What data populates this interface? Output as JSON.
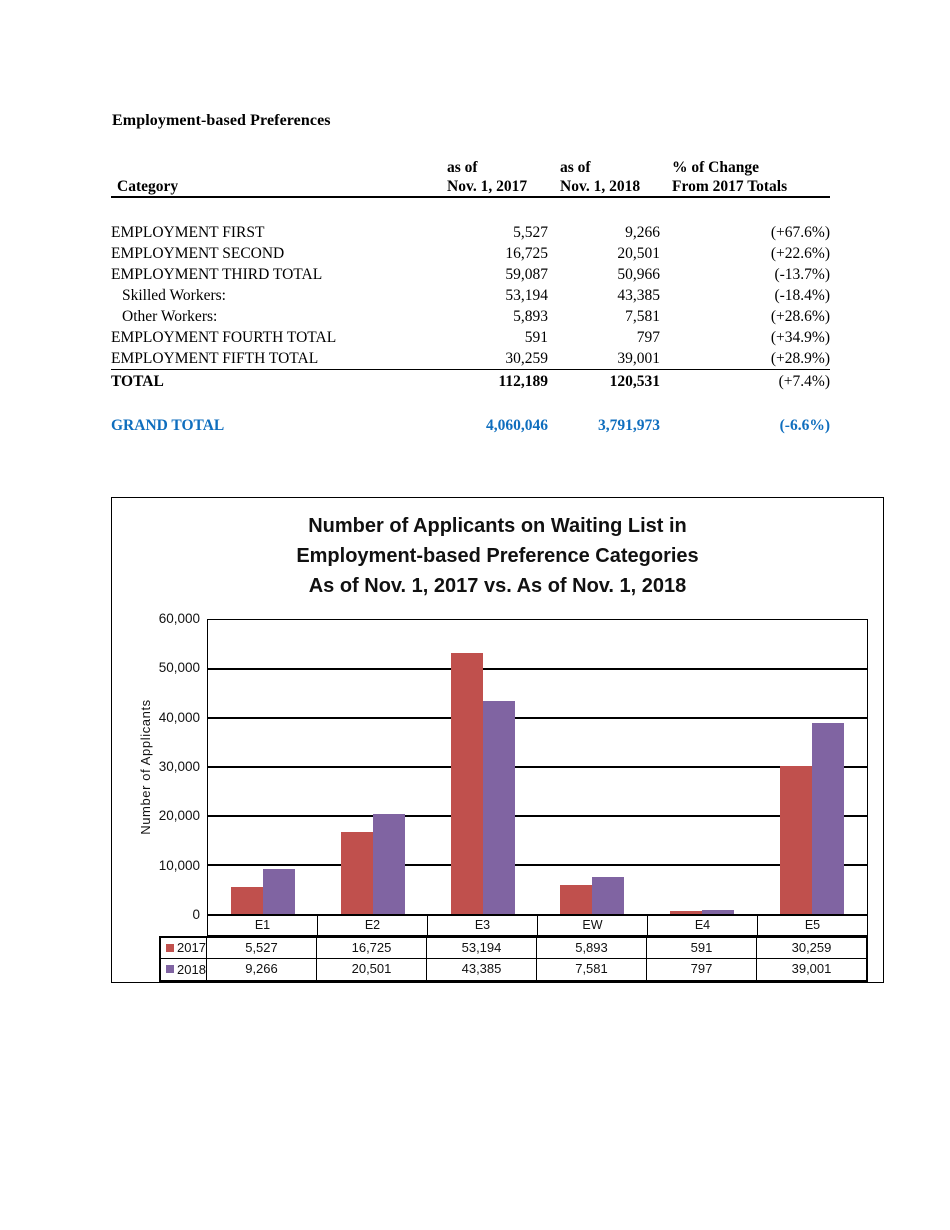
{
  "doc": {
    "heading": "Employment-based Preferences"
  },
  "table": {
    "headers": {
      "category": "Category",
      "col2": [
        "as of",
        "Nov. 1, 2017"
      ],
      "col3": [
        "as of",
        "Nov. 1, 2018"
      ],
      "col4": [
        "% of Change",
        "From 2017 Totals"
      ]
    },
    "rows": [
      {
        "category": "EMPLOYMENT FIRST",
        "y2017": "5,527",
        "y2018": "9,266",
        "change": "(+67.6%)",
        "style": "normal"
      },
      {
        "category": "EMPLOYMENT SECOND",
        "y2017": "16,725",
        "y2018": "20,501",
        "change": "(+22.6%)",
        "style": "normal"
      },
      {
        "category": "EMPLOYMENT THIRD TOTAL",
        "y2017": "59,087",
        "y2018": "50,966",
        "change": "(-13.7%)",
        "style": "normal"
      },
      {
        "category": "Skilled Workers:",
        "y2017": "53,194",
        "y2018": "43,385",
        "change": "(-18.4%)",
        "style": "indent"
      },
      {
        "category": "Other Workers:",
        "y2017": "5,893",
        "y2018": "7,581",
        "change": "(+28.6%)",
        "style": "indent"
      },
      {
        "category": "EMPLOYMENT FOURTH TOTAL",
        "y2017": "591",
        "y2018": "797",
        "change": "(+34.9%)",
        "style": "normal"
      },
      {
        "category": "EMPLOYMENT FIFTH TOTAL",
        "y2017": "30,259",
        "y2018": "39,001",
        "change": "(+28.9%)",
        "style": "rule-below"
      },
      {
        "category": "TOTAL",
        "y2017": "112,189",
        "y2018": "120,531",
        "change": "(+7.4%)",
        "style": "total"
      }
    ],
    "grand_total": {
      "category": "GRAND TOTAL",
      "y2017": "4,060,046",
      "y2018": "3,791,973",
      "change": "(-6.6%)"
    },
    "grand_total_color": "#0F6EBE"
  },
  "chart_data": {
    "type": "bar",
    "title_lines": [
      "Number of Applicants on Waiting List in",
      "Employment-based Preference Categories",
      "As of Nov. 1, 2017 vs. As of Nov. 1, 2018"
    ],
    "ylabel": "Number of Applicants",
    "xlabel": "",
    "ylim": [
      0,
      60000
    ],
    "ytick_step": 10000,
    "ytick_labels": [
      "60,000",
      "50,000",
      "40,000",
      "30,000",
      "20,000",
      "10,000",
      "0"
    ],
    "grid": true,
    "legend_position": "table-left",
    "categories": [
      "E1",
      "E2",
      "E3",
      "EW",
      "E4",
      "E5"
    ],
    "series": [
      {
        "name": "2017",
        "color": "#C0504D",
        "values": [
          5527,
          16725,
          53194,
          5893,
          591,
          30259
        ],
        "labels": [
          "5,527",
          "16,725",
          "53,194",
          "5,893",
          "591",
          "30,259"
        ]
      },
      {
        "name": "2018",
        "color": "#8064A2",
        "values": [
          9266,
          20501,
          43385,
          7581,
          797,
          39001
        ],
        "labels": [
          "9,266",
          "20,501",
          "43,385",
          "7,581",
          "797",
          "39,001"
        ]
      }
    ]
  }
}
